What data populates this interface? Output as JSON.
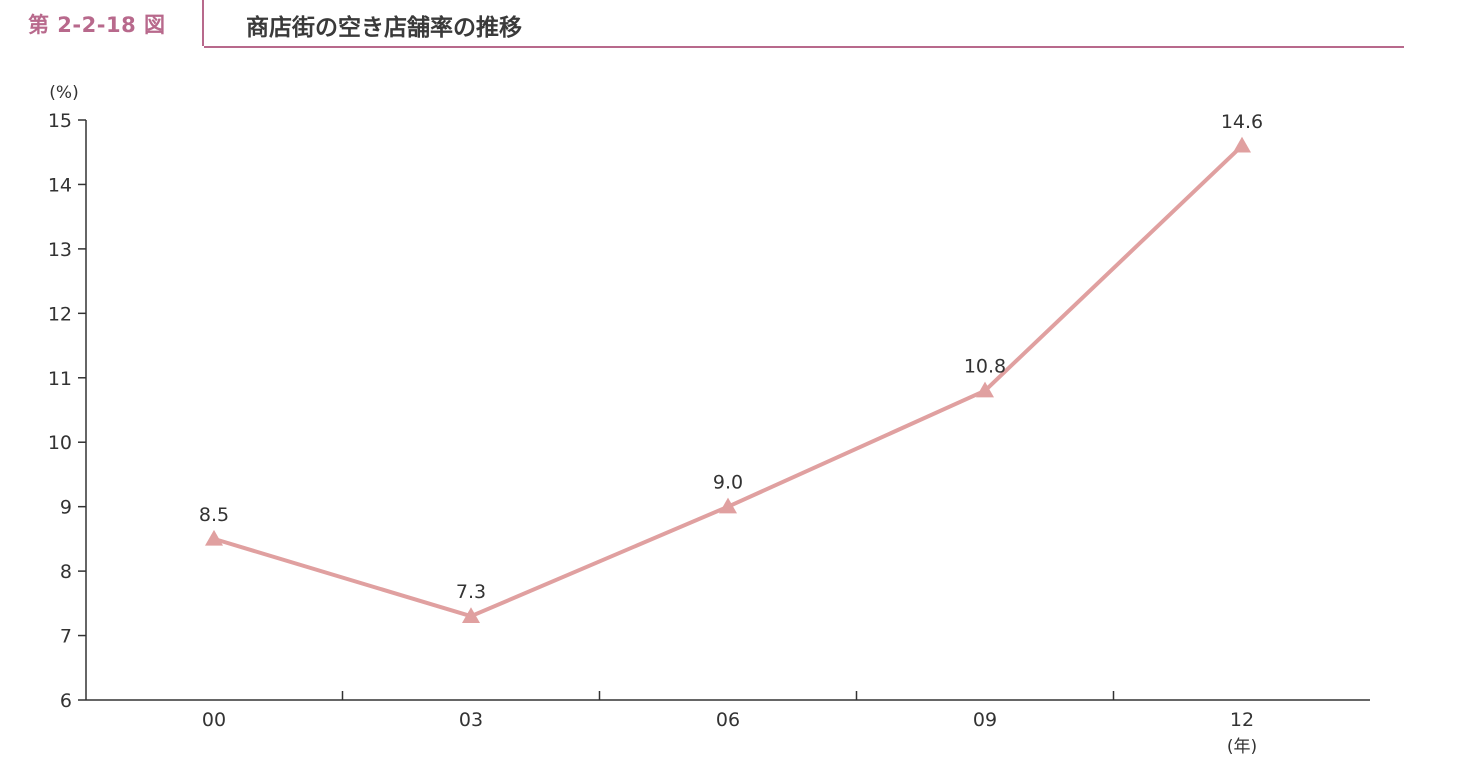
{
  "header": {
    "figure_number": "第 2-2-18 図",
    "title": "商店街の空き店舗率の推移"
  },
  "colors": {
    "accent": "#b8698c",
    "series_line": "#e0a0a0",
    "axis": "#333333"
  },
  "chart_data": {
    "type": "line",
    "title": "商店街の空き店舗率の推移",
    "x": [
      "00",
      "03",
      "06",
      "09",
      "12"
    ],
    "series": [
      {
        "values": [
          8.5,
          7.3,
          9.0,
          10.8,
          14.6
        ],
        "marker": "triangle"
      }
    ],
    "data_labels": [
      "8.5",
      "7.3",
      "9.0",
      "10.8",
      "14.6"
    ],
    "y_unit": "(%)",
    "x_unit": "(年)",
    "ylim": [
      6,
      15
    ],
    "y_ticks": [
      6,
      7,
      8,
      9,
      10,
      11,
      12,
      13,
      14,
      15
    ],
    "grid": false,
    "legend": "none"
  }
}
